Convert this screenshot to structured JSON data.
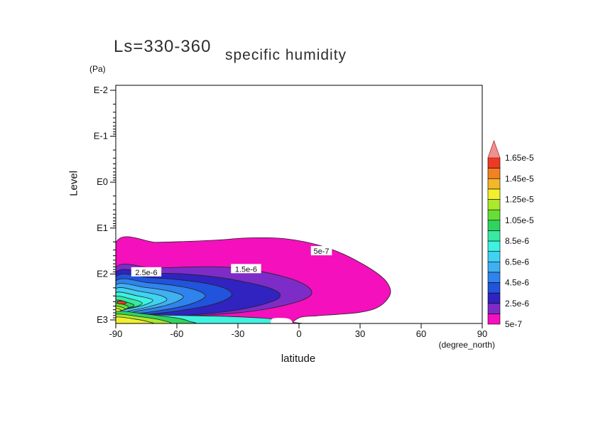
{
  "title": {
    "main": "Ls=330-360",
    "sub": "specific  humidity"
  },
  "y_axis": {
    "unit": "(Pa)",
    "label": "Level",
    "ticks": [
      "E-2",
      "E-1",
      "E0",
      "E1",
      "E2",
      "E3"
    ]
  },
  "x_axis": {
    "label": "latitude",
    "unit": "(degree_north)",
    "ticks": [
      "-90",
      "-60",
      "-30",
      "0",
      "30",
      "60",
      "90"
    ]
  },
  "colorbar": {
    "labels": [
      "1.65e-5",
      "1.45e-5",
      "1.25e-5",
      "1.05e-5",
      "8.5e-6",
      "6.5e-6",
      "4.5e-6",
      "2.5e-6",
      "5e-7"
    ]
  },
  "chart_data": {
    "type": "contour",
    "title": "specific humidity",
    "subtitle": "Ls=330-360",
    "xlabel": "latitude (degree_north)",
    "ylabel": "Level (Pa)",
    "x_range": [
      -90,
      90
    ],
    "x_tick_values": [
      -90,
      -60,
      -30,
      0,
      30,
      60,
      90
    ],
    "y_scale": "log",
    "y_direction": "pressure increases downward",
    "y_tick_values_pa": [
      "1e-2",
      "1e-1",
      "1e0",
      "1e1",
      "1e2",
      "1e3"
    ],
    "levels": [
      "5e-7",
      "1.5e-6",
      "2.5e-6",
      "3.5e-6",
      "4.5e-6",
      "5.5e-6",
      "6.5e-6",
      "7.5e-6",
      "8.5e-6",
      "9.5e-6",
      "1.05e-5",
      "1.15e-5",
      "1.25e-5",
      "1.35e-5",
      "1.45e-5",
      "1.55e-5",
      "1.65e-5"
    ],
    "palette": [
      "#f410bc",
      "#7e2cc8",
      "#3023c0",
      "#2153dc",
      "#2f83ec",
      "#3fb0f2",
      "#40d2f2",
      "#3df2e0",
      "#37e9a4",
      "#2fd45e",
      "#66de36",
      "#abe92c",
      "#f2ef2d",
      "#f4b72a",
      "#f28122",
      "#ee3a23"
    ],
    "over_color": "#f0908f",
    "line_color": "#222222",
    "contour_labels": [
      {
        "text": "5e-7",
        "lat": 11,
        "logp": 1.5
      },
      {
        "text": "1.5e-6",
        "lat": -26,
        "logp": 1.89
      },
      {
        "text": "2.5e-6",
        "lat": -75,
        "logp": 1.96
      }
    ],
    "regions": [
      {
        "level": "5e-7",
        "color": 0,
        "pts": [
          [
            -90,
            1.32
          ],
          [
            -70,
            1.31
          ],
          [
            -55,
            1.29
          ],
          [
            -40,
            1.26
          ],
          [
            -28,
            1.22
          ],
          [
            -18,
            1.21
          ],
          [
            -10,
            1.22
          ],
          [
            -2,
            1.26
          ],
          [
            6,
            1.33
          ],
          [
            14,
            1.43
          ],
          [
            22,
            1.57
          ],
          [
            30,
            1.75
          ],
          [
            38,
            1.97
          ],
          [
            43,
            2.17
          ],
          [
            45,
            2.4
          ],
          [
            42,
            2.62
          ],
          [
            37,
            2.76
          ],
          [
            29,
            2.84
          ],
          [
            19,
            2.88
          ],
          [
            9,
            2.91
          ],
          [
            1,
            2.94
          ],
          [
            -3,
            3.04
          ],
          [
            -5,
            3.09
          ],
          [
            -90,
            3.09
          ]
        ]
      },
      {
        "level": "1.5e-6",
        "color": 1,
        "pts": [
          [
            -90,
            1.86
          ],
          [
            -72,
            1.87
          ],
          [
            -56,
            1.85
          ],
          [
            -43,
            1.84
          ],
          [
            -33,
            1.86
          ],
          [
            -25,
            1.9
          ],
          [
            -17,
            1.96
          ],
          [
            -9,
            2.04
          ],
          [
            -1,
            2.15
          ],
          [
            5,
            2.3
          ],
          [
            6,
            2.45
          ],
          [
            1,
            2.58
          ],
          [
            -7,
            2.68
          ],
          [
            -17,
            2.77
          ],
          [
            -29,
            2.84
          ],
          [
            -44,
            2.89
          ],
          [
            -60,
            2.92
          ],
          [
            -76,
            2.94
          ],
          [
            -90,
            2.95
          ]
        ]
      },
      {
        "level": "2.5e-6",
        "color": 2,
        "pts": [
          [
            -90,
            1.97
          ],
          [
            -74,
            1.98
          ],
          [
            -60,
            1.99
          ],
          [
            -48,
            2.03
          ],
          [
            -37,
            2.09
          ],
          [
            -27,
            2.17
          ],
          [
            -17,
            2.27
          ],
          [
            -10,
            2.4
          ],
          [
            -10,
            2.53
          ],
          [
            -16,
            2.64
          ],
          [
            -25,
            2.74
          ],
          [
            -36,
            2.82
          ],
          [
            -49,
            2.88
          ],
          [
            -63,
            2.92
          ],
          [
            -78,
            2.94
          ],
          [
            -90,
            2.95
          ]
        ]
      },
      {
        "level": "3.5e-6",
        "color": 3,
        "pts": [
          [
            -90,
            2.06
          ],
          [
            -73,
            2.08
          ],
          [
            -58,
            2.13
          ],
          [
            -45,
            2.21
          ],
          [
            -36,
            2.32
          ],
          [
            -33,
            2.45
          ],
          [
            -37,
            2.58
          ],
          [
            -45,
            2.69
          ],
          [
            -56,
            2.78
          ],
          [
            -68,
            2.85
          ],
          [
            -80,
            2.9
          ],
          [
            -90,
            2.92
          ]
        ]
      },
      {
        "level": "4.5e-6",
        "color": 4,
        "pts": [
          [
            -90,
            2.15
          ],
          [
            -74,
            2.19
          ],
          [
            -60,
            2.26
          ],
          [
            -50,
            2.36
          ],
          [
            -46,
            2.48
          ],
          [
            -50,
            2.6
          ],
          [
            -58,
            2.71
          ],
          [
            -69,
            2.8
          ],
          [
            -81,
            2.87
          ],
          [
            -90,
            2.9
          ]
        ]
      },
      {
        "level": "5.5e-6",
        "color": 5,
        "pts": [
          [
            -90,
            2.24
          ],
          [
            -76,
            2.29
          ],
          [
            -64,
            2.37
          ],
          [
            -57,
            2.48
          ],
          [
            -60,
            2.6
          ],
          [
            -68,
            2.71
          ],
          [
            -79,
            2.8
          ],
          [
            -90,
            2.86
          ]
        ]
      },
      {
        "level": "6.5e-6",
        "color": 6,
        "pts": [
          [
            -90,
            2.32
          ],
          [
            -78,
            2.38
          ],
          [
            -68,
            2.47
          ],
          [
            -65,
            2.57
          ],
          [
            -71,
            2.68
          ],
          [
            -81,
            2.78
          ],
          [
            -90,
            2.82
          ]
        ]
      },
      {
        "level": "7.5e-6",
        "color": 7,
        "pts": [
          [
            -90,
            2.41
          ],
          [
            -80,
            2.47
          ],
          [
            -72,
            2.56
          ],
          [
            -75,
            2.66
          ],
          [
            -83,
            2.75
          ],
          [
            -90,
            2.78
          ]
        ]
      },
      {
        "level": "8.5e-6",
        "color": 8,
        "pts": [
          [
            -90,
            2.49
          ],
          [
            -82,
            2.55
          ],
          [
            -77,
            2.63
          ],
          [
            -81,
            2.72
          ],
          [
            -90,
            2.76
          ]
        ]
      },
      {
        "level": "9.5e-6",
        "color": 9,
        "pts": [
          [
            -90,
            2.57
          ],
          [
            -84,
            2.62
          ],
          [
            -81,
            2.69
          ],
          [
            -86,
            2.75
          ],
          [
            -90,
            2.76
          ]
        ]
      },
      {
        "level": "1.05e-5",
        "color": 10,
        "pts": [
          [
            -90,
            2.64
          ],
          [
            -85,
            2.68
          ],
          [
            -84,
            2.74
          ],
          [
            -88,
            2.78
          ],
          [
            -90,
            2.78
          ]
        ]
      },
      {
        "level": "1.15e-5",
        "color": 11,
        "pts": [
          [
            -90,
            2.7
          ],
          [
            -86,
            2.74
          ],
          [
            -86,
            2.78
          ],
          [
            -90,
            2.8
          ]
        ]
      },
      {
        "level": "1.25e-5",
        "color": 12,
        "pts": [
          [
            -90,
            2.75
          ],
          [
            -87.5,
            2.78
          ],
          [
            -88,
            2.81
          ],
          [
            -90,
            2.82
          ]
        ]
      },
      {
        "level": "7.5e-6",
        "color": 7,
        "pts": [
          [
            -90,
            2.88
          ],
          [
            -62,
            2.9
          ],
          [
            -38,
            2.92
          ],
          [
            -18,
            2.96
          ],
          [
            -12,
            3.0
          ],
          [
            -13,
            3.09
          ],
          [
            -90,
            3.09
          ]
        ]
      },
      {
        "level": "9.5e-6",
        "color": 9,
        "pts": [
          [
            -90,
            2.82
          ],
          [
            -74,
            2.88
          ],
          [
            -60,
            2.96
          ],
          [
            -54,
            3.03
          ],
          [
            -53,
            3.09
          ],
          [
            -90,
            3.09
          ]
        ]
      },
      {
        "level": "1.15e-5",
        "color": 11,
        "pts": [
          [
            -90,
            2.88
          ],
          [
            -78,
            2.93
          ],
          [
            -68,
            3.0
          ],
          [
            -64,
            3.09
          ],
          [
            -90,
            3.09
          ]
        ]
      },
      {
        "level": "1.25e-5",
        "color": 12,
        "pts": [
          [
            -90,
            2.94
          ],
          [
            -81,
            2.98
          ],
          [
            -74,
            3.04
          ],
          [
            -72,
            3.09
          ],
          [
            -90,
            3.09
          ]
        ]
      },
      {
        "level": "1.65e-5",
        "color": 15,
        "pts": [
          [
            -89,
            2.59
          ],
          [
            -85.5,
            2.6
          ],
          [
            -85,
            2.64
          ],
          [
            -88.5,
            2.65
          ]
        ]
      },
      {
        "level": "blank",
        "color": -1,
        "pts": [
          [
            -13,
            2.97
          ],
          [
            -7,
            2.96
          ],
          [
            -4,
            3.0
          ],
          [
            -4,
            3.09
          ],
          [
            -13,
            3.09
          ]
        ]
      }
    ]
  }
}
